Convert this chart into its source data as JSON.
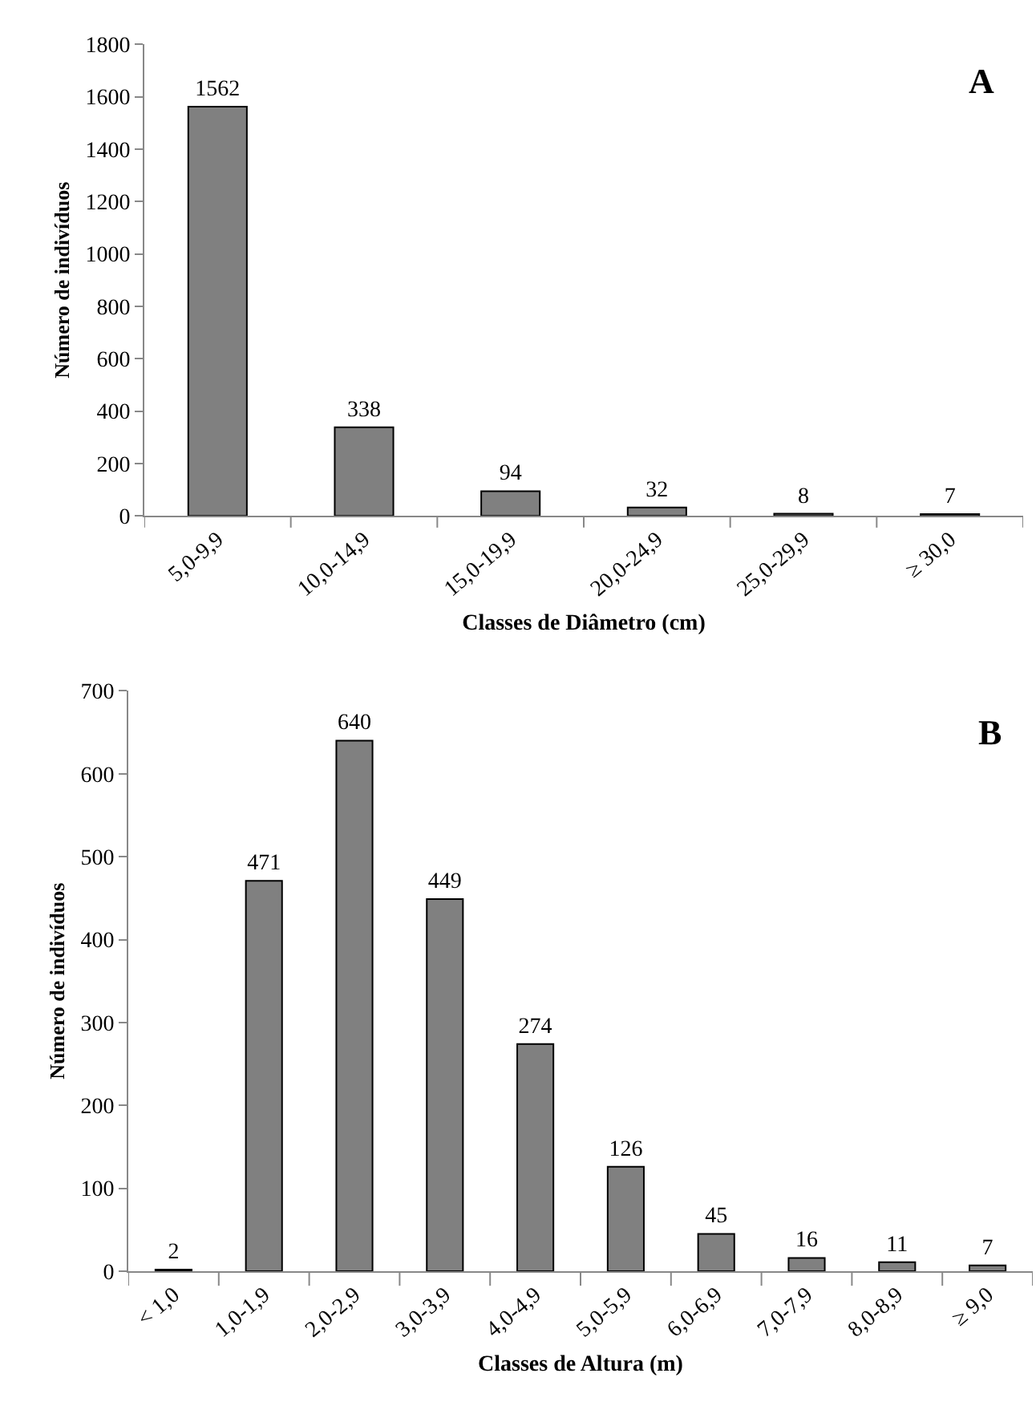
{
  "chart_data": [
    {
      "type": "bar",
      "categories": [
        "5,0-9,9",
        "10,0-14,9",
        "15,0-19,9",
        "20,0-24,9",
        "25,0-29,9",
        "≥ 30,0"
      ],
      "values": [
        1562,
        338,
        94,
        32,
        8,
        7
      ],
      "color": "#808080",
      "ylim": [
        0,
        1800
      ],
      "yticks": [
        0,
        200,
        400,
        600,
        800,
        1000,
        1200,
        1400,
        1600,
        1800
      ],
      "xlabel": "Classes de Diâmetro (cm)",
      "ylabel": "Número de indivíduos",
      "annotations": [
        "A"
      ],
      "data_labels": true
    },
    {
      "type": "bar",
      "categories": [
        "< 1,0",
        "1,0-1,9",
        "2,0-2,9",
        "3,0-3,9",
        "4,0-4,9",
        "5,0-5,9",
        "6,0-6,9",
        "7,0-7,9",
        "8,0-8,9",
        "≥ 9,0"
      ],
      "values": [
        2,
        471,
        640,
        449,
        274,
        126,
        45,
        16,
        11,
        7
      ],
      "color": "#808080",
      "ylim": [
        0,
        700
      ],
      "yticks": [
        0,
        100,
        200,
        300,
        400,
        500,
        600,
        700
      ],
      "xlabel": "Classes de Altura (m)",
      "ylabel": "Número de indivíduos",
      "annotations": [
        "B"
      ],
      "data_labels": true
    }
  ]
}
